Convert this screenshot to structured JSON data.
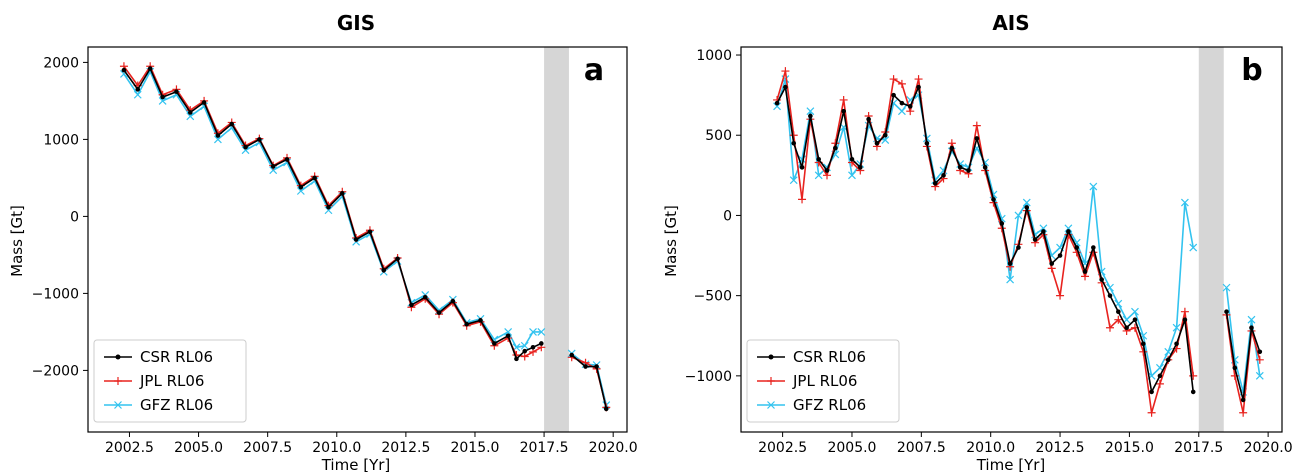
{
  "chart_data": [
    {
      "type": "line",
      "title": "GIS",
      "xlabel": "Time [Yr]",
      "ylabel": "Mass [Gt]",
      "panel_label": "a",
      "xlim": [
        2001.0,
        2020.5
      ],
      "ylim": [
        -2800,
        2200
      ],
      "xticks": [
        2002.5,
        2005.0,
        2007.5,
        2010.0,
        2012.5,
        2015.0,
        2017.5,
        2020.0
      ],
      "xtick_labels": [
        "2002.5",
        "2005.0",
        "2007.5",
        "2010.0",
        "2012.5",
        "2015.0",
        "2017.5",
        "2020.0"
      ],
      "yticks": [
        -2000,
        -1000,
        0,
        1000,
        2000
      ],
      "ytick_labels": [
        "−2000",
        "−1000",
        "0",
        "1000",
        "2000"
      ],
      "gap": [
        2017.5,
        2018.4
      ],
      "legend_position": "lower-left",
      "series": [
        {
          "name": "CSR RL06",
          "color": "#000000",
          "marker": "dot",
          "x": [
            2002.3,
            2002.8,
            2003.25,
            2003.7,
            2004.2,
            2004.7,
            2005.2,
            2005.7,
            2006.2,
            2006.7,
            2007.2,
            2007.7,
            2008.2,
            2008.7,
            2009.2,
            2009.7,
            2010.2,
            2010.7,
            2011.2,
            2011.7,
            2012.2,
            2012.7,
            2013.2,
            2013.7,
            2014.2,
            2014.7,
            2015.2,
            2015.7,
            2016.2,
            2016.5,
            2016.8,
            2017.1,
            2017.4,
            2018.5,
            2019.0,
            2019.4,
            2019.75
          ],
          "values": [
            1900,
            1650,
            1920,
            1550,
            1620,
            1350,
            1480,
            1050,
            1200,
            900,
            1000,
            650,
            740,
            380,
            500,
            120,
            300,
            -300,
            -200,
            -700,
            -550,
            -1150,
            -1050,
            -1250,
            -1100,
            -1400,
            -1350,
            -1650,
            -1550,
            -1850,
            -1750,
            -1700,
            -1650,
            -1800,
            -1950,
            -1950,
            -2500
          ]
        },
        {
          "name": "JPL RL06",
          "color": "#e8231f",
          "marker": "plus",
          "x": [
            2002.3,
            2002.8,
            2003.25,
            2003.7,
            2004.2,
            2004.7,
            2005.2,
            2005.7,
            2006.2,
            2006.7,
            2007.2,
            2007.7,
            2008.2,
            2008.7,
            2009.2,
            2009.7,
            2010.2,
            2010.7,
            2011.2,
            2011.7,
            2012.2,
            2012.7,
            2013.2,
            2013.7,
            2014.2,
            2014.7,
            2015.2,
            2015.7,
            2016.2,
            2016.5,
            2016.8,
            2017.1,
            2017.4,
            2018.5,
            2019.0,
            2019.4,
            2019.75
          ],
          "values": [
            1950,
            1700,
            1950,
            1580,
            1650,
            1380,
            1500,
            1080,
            1220,
            920,
            1010,
            660,
            760,
            400,
            520,
            140,
            320,
            -280,
            -180,
            -680,
            -540,
            -1180,
            -1070,
            -1270,
            -1120,
            -1420,
            -1370,
            -1680,
            -1580,
            -1800,
            -1820,
            -1760,
            -1700,
            -1830,
            -1900,
            -1980,
            -2480
          ]
        },
        {
          "name": "GFZ RL06",
          "color": "#33c3ef",
          "marker": "x",
          "x": [
            2002.3,
            2002.8,
            2003.25,
            2003.7,
            2004.2,
            2004.7,
            2005.2,
            2005.7,
            2006.2,
            2006.7,
            2007.2,
            2007.7,
            2008.2,
            2008.7,
            2009.2,
            2009.7,
            2010.2,
            2010.7,
            2011.2,
            2011.7,
            2012.2,
            2012.7,
            2013.2,
            2013.7,
            2014.2,
            2014.7,
            2015.2,
            2015.7,
            2016.2,
            2016.5,
            2016.8,
            2017.1,
            2017.4,
            2018.5,
            2019.0,
            2019.4,
            2019.75
          ],
          "values": [
            1850,
            1580,
            1880,
            1500,
            1580,
            1300,
            1430,
            1000,
            1150,
            860,
            960,
            600,
            700,
            330,
            460,
            80,
            260,
            -330,
            -230,
            -720,
            -580,
            -1120,
            -1020,
            -1220,
            -1080,
            -1380,
            -1330,
            -1600,
            -1500,
            -1700,
            -1680,
            -1500,
            -1500,
            -1780,
            -1920,
            -1930,
            -2450
          ]
        }
      ]
    },
    {
      "type": "line",
      "title": "AIS",
      "xlabel": "Time [Yr]",
      "ylabel": "Mass [Gt]",
      "panel_label": "b",
      "xlim": [
        2001.0,
        2020.5
      ],
      "ylim": [
        -1350,
        1050
      ],
      "xticks": [
        2002.5,
        2005.0,
        2007.5,
        2010.0,
        2012.5,
        2015.0,
        2017.5,
        2020.0
      ],
      "xtick_labels": [
        "2002.5",
        "2005.0",
        "2007.5",
        "2010.0",
        "2012.5",
        "2015.0",
        "2017.5",
        "2020.0"
      ],
      "yticks": [
        -1000,
        -500,
        0,
        500,
        1000
      ],
      "ytick_labels": [
        "−1000",
        "−500",
        "0",
        "500",
        "1000"
      ],
      "gap": [
        2017.5,
        2018.4
      ],
      "legend_position": "lower-left",
      "series": [
        {
          "name": "CSR RL06",
          "color": "#000000",
          "marker": "dot",
          "x": [
            2002.3,
            2002.6,
            2002.9,
            2003.2,
            2003.5,
            2003.8,
            2004.1,
            2004.4,
            2004.7,
            2005.0,
            2005.3,
            2005.6,
            2005.9,
            2006.2,
            2006.5,
            2006.8,
            2007.1,
            2007.4,
            2007.7,
            2008.0,
            2008.3,
            2008.6,
            2008.9,
            2009.2,
            2009.5,
            2009.8,
            2010.1,
            2010.4,
            2010.7,
            2011.0,
            2011.3,
            2011.6,
            2011.9,
            2012.2,
            2012.5,
            2012.8,
            2013.1,
            2013.4,
            2013.7,
            2014.0,
            2014.3,
            2014.6,
            2014.9,
            2015.2,
            2015.5,
            2015.8,
            2016.1,
            2016.4,
            2016.7,
            2017.0,
            2017.3,
            2018.5,
            2018.8,
            2019.1,
            2019.4,
            2019.7
          ],
          "values": [
            700,
            800,
            450,
            300,
            620,
            350,
            280,
            420,
            650,
            350,
            300,
            600,
            450,
            500,
            750,
            700,
            680,
            800,
            450,
            200,
            250,
            420,
            300,
            280,
            480,
            300,
            100,
            -50,
            -300,
            -200,
            50,
            -150,
            -100,
            -300,
            -250,
            -100,
            -200,
            -350,
            -200,
            -400,
            -500,
            -600,
            -700,
            -650,
            -800,
            -1100,
            -1000,
            -900,
            -800,
            -650,
            -1100,
            -600,
            -950,
            -1150,
            -700,
            -850
          ]
        },
        {
          "name": "JPL RL06",
          "color": "#e8231f",
          "marker": "plus",
          "x": [
            2002.3,
            2002.6,
            2002.9,
            2003.2,
            2003.5,
            2003.8,
            2004.1,
            2004.4,
            2004.7,
            2005.0,
            2005.3,
            2005.6,
            2005.9,
            2006.2,
            2006.5,
            2006.8,
            2007.1,
            2007.4,
            2007.7,
            2008.0,
            2008.3,
            2008.6,
            2008.9,
            2009.2,
            2009.5,
            2009.8,
            2010.1,
            2010.4,
            2010.7,
            2011.0,
            2011.3,
            2011.6,
            2011.9,
            2012.2,
            2012.5,
            2012.8,
            2013.1,
            2013.4,
            2013.7,
            2014.0,
            2014.3,
            2014.6,
            2014.9,
            2015.2,
            2015.5,
            2015.8,
            2016.1,
            2016.4,
            2016.7,
            2017.0,
            2017.3,
            2018.5,
            2018.8,
            2019.1,
            2019.4,
            2019.7
          ],
          "values": [
            720,
            900,
            500,
            100,
            600,
            330,
            250,
            450,
            720,
            330,
            280,
            620,
            430,
            520,
            850,
            820,
            650,
            850,
            430,
            180,
            230,
            450,
            280,
            260,
            560,
            280,
            80,
            -80,
            -320,
            -180,
            30,
            -170,
            -120,
            -330,
            -500,
            -120,
            -230,
            -380,
            -230,
            -420,
            -700,
            -650,
            -720,
            -700,
            -850,
            -1230,
            -1050,
            -900,
            -830,
            -600,
            -1000,
            -620,
            -1000,
            -1230,
            -720,
            -900
          ]
        },
        {
          "name": "GFZ RL06",
          "color": "#33c3ef",
          "marker": "x",
          "x": [
            2002.3,
            2002.6,
            2002.9,
            2003.2,
            2003.5,
            2003.8,
            2004.1,
            2004.4,
            2004.7,
            2005.0,
            2005.3,
            2005.6,
            2005.9,
            2006.2,
            2006.5,
            2006.8,
            2007.1,
            2007.4,
            2007.7,
            2008.0,
            2008.3,
            2008.6,
            2008.9,
            2009.2,
            2009.5,
            2009.8,
            2010.1,
            2010.4,
            2010.7,
            2011.0,
            2011.3,
            2011.6,
            2011.9,
            2012.2,
            2012.5,
            2012.8,
            2013.1,
            2013.4,
            2013.7,
            2014.0,
            2014.3,
            2014.6,
            2014.9,
            2015.2,
            2015.5,
            2015.8,
            2016.1,
            2016.4,
            2016.7,
            2017.0,
            2017.3,
            2018.5,
            2018.8,
            2019.1,
            2019.4,
            2019.7
          ],
          "values": [
            680,
            850,
            220,
            350,
            650,
            250,
            300,
            380,
            550,
            250,
            320,
            560,
            480,
            470,
            700,
            650,
            720,
            750,
            480,
            220,
            280,
            400,
            320,
            300,
            420,
            330,
            130,
            -20,
            -400,
            0,
            80,
            -120,
            -80,
            -250,
            -200,
            -80,
            -170,
            -300,
            180,
            -350,
            -450,
            -550,
            -650,
            -600,
            -750,
            -1000,
            -950,
            -850,
            -700,
            80,
            -200,
            -450,
            -900,
            -1100,
            -650,
            -1000
          ]
        }
      ]
    }
  ]
}
